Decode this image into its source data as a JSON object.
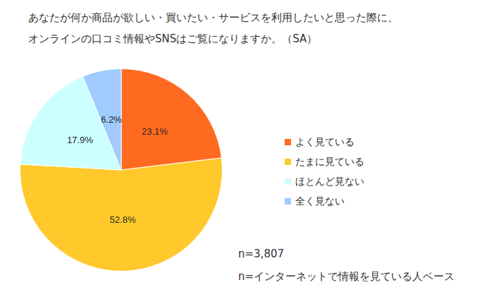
{
  "chart_data": {
    "type": "pie",
    "title": [
      "あなたが何か商品が欲しい・買いたい・サービスを利用したいと思った際に、",
      "オンラインの口コミ情報やSNSはご覧になりますか。（SA）"
    ],
    "categories": [
      "よく見ている",
      "たまに見ている",
      "ほとんど見ない",
      "全く見ない"
    ],
    "values": [
      23.1,
      52.8,
      17.9,
      6.2
    ],
    "value_labels": [
      "23.1%",
      "52.8%",
      "17.9%",
      "6.2%"
    ],
    "colors": [
      "#ff6a21",
      "#ffc92b",
      "#ccffff",
      "#9fcbff"
    ],
    "data_labels": true,
    "legend": "right",
    "annotations": [
      "n=3,807",
      "n=インターネットで情報を見ている人ベース"
    ]
  }
}
